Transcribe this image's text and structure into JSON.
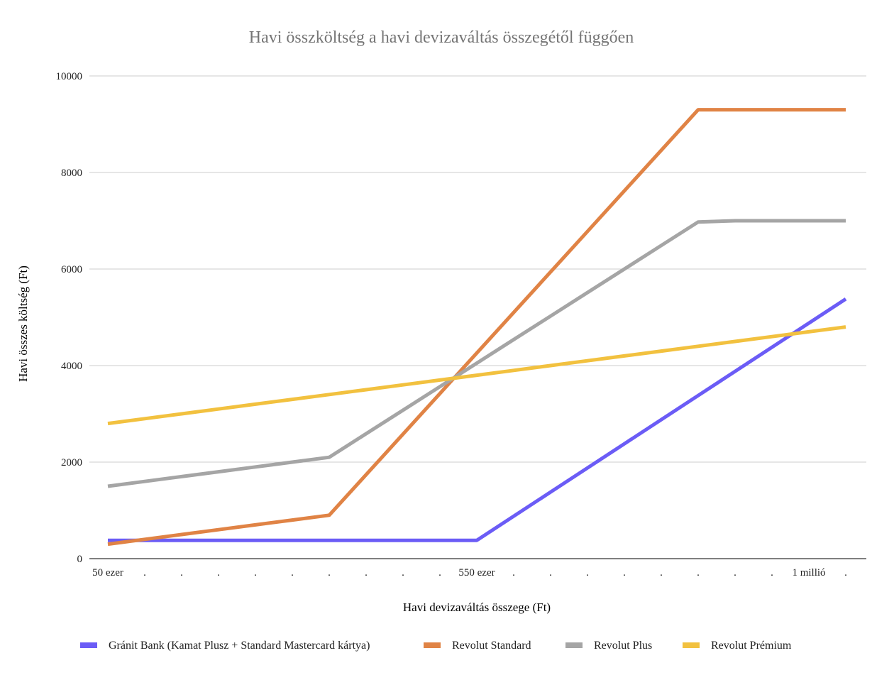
{
  "chart_data": {
    "type": "line",
    "title": "Havi összköltség a havi devizaváltás összegétől függően",
    "xlabel": "Havi devizaváltás összege (Ft)",
    "ylabel": "Havi összes költség (Ft)",
    "ylim": [
      0,
      10000
    ],
    "y_ticks": [
      0,
      2000,
      4000,
      6000,
      8000,
      10000
    ],
    "grid": true,
    "legend_position": "bottom",
    "x": [
      50000,
      100000,
      150000,
      200000,
      250000,
      300000,
      350000,
      400000,
      450000,
      500000,
      550000,
      600000,
      650000,
      700000,
      750000,
      800000,
      850000,
      900000,
      950000,
      1000000,
      1050000
    ],
    "x_tick_labels": [
      "50 ezer",
      ".",
      ".",
      ".",
      ".",
      ".",
      ".",
      ".",
      ".",
      ".",
      "550 ezer",
      ".",
      ".",
      ".",
      ".",
      ".",
      ".",
      ".",
      ".",
      "1 millió",
      "."
    ],
    "series": [
      {
        "name": "Gránit Bank (Kamat Plusz + Standard Mastercard kártya)",
        "color": "#6b5cf6",
        "values": [
          380,
          380,
          380,
          380,
          380,
          380,
          380,
          380,
          380,
          380,
          380,
          880,
          1380,
          1880,
          2380,
          2880,
          3380,
          3880,
          4380,
          4880,
          5380
        ]
      },
      {
        "name": "Revolut Standard",
        "color": "#e08345",
        "values": [
          300,
          400,
          500,
          600,
          700,
          800,
          900,
          1740,
          2580,
          3420,
          4260,
          5100,
          5940,
          6780,
          7620,
          8460,
          9300,
          9300,
          9300,
          9300,
          9300
        ]
      },
      {
        "name": "Revolut Plus",
        "color": "#a5a5a5",
        "values": [
          1500,
          1600,
          1700,
          1800,
          1900,
          2000,
          2100,
          2588,
          3075,
          3563,
          4050,
          4538,
          5025,
          5513,
          6000,
          6488,
          6975,
          7000,
          7000,
          7000,
          7000
        ]
      },
      {
        "name": "Revolut Prémium",
        "color": "#f2c13f",
        "values": [
          2800,
          2900,
          3000,
          3100,
          3200,
          3300,
          3400,
          3500,
          3600,
          3700,
          3800,
          3900,
          4000,
          4100,
          4200,
          4300,
          4400,
          4500,
          4600,
          4700,
          4800
        ]
      }
    ]
  }
}
